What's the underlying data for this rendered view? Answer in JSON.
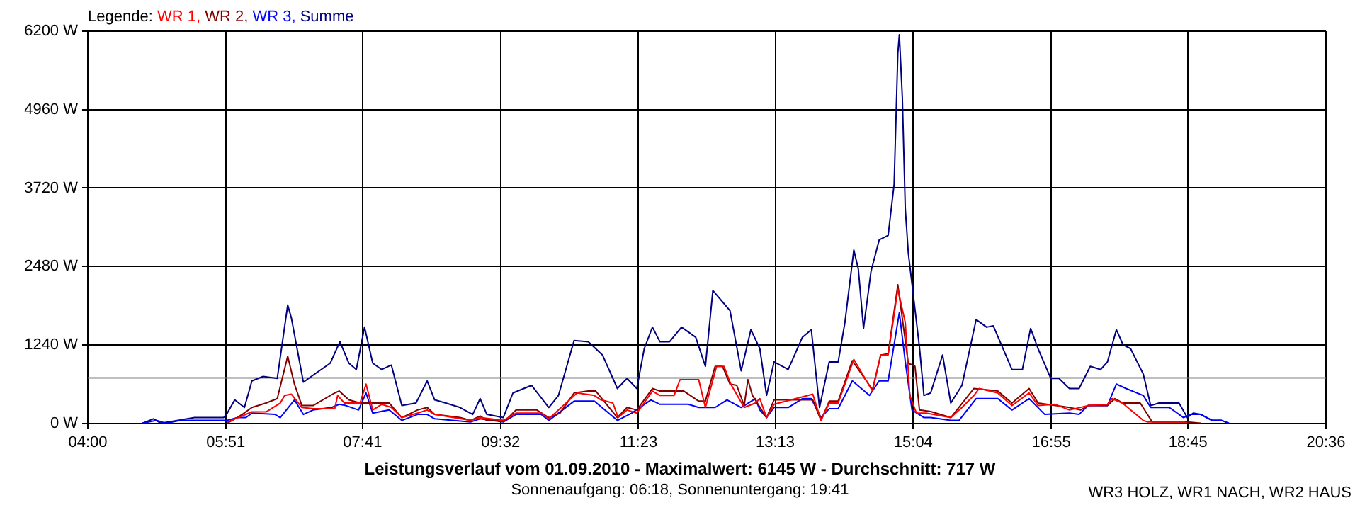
{
  "chart_data": {
    "type": "line",
    "title": "Leistungsverlauf vom 01.09.2010 - Maximalwert: 6145 W - Durchschnitt: 717 W",
    "subtitle": "Sonnenaufgang: 06:18, Sonnenuntergang: 19:41",
    "annotations": [
      "WR3 HOLZ, WR1 NACH, WR2 HAUS"
    ],
    "legend_title": "Legende:",
    "legend": "top left",
    "grid": true,
    "marker": "none",
    "xlim": [
      4,
      20.6
    ],
    "xticks": [
      {
        "value": 4,
        "label": "04:00"
      },
      {
        "value": 5.85,
        "label": "05:51"
      },
      {
        "value": 7.6833,
        "label": "07:41"
      },
      {
        "value": 9.5333,
        "label": "09:32"
      },
      {
        "value": 11.3833,
        "label": "11:23"
      },
      {
        "value": 13.2167,
        "label": "13:13"
      },
      {
        "value": 15.0667,
        "label": "15:04"
      },
      {
        "value": 16.9167,
        "label": "16:55"
      },
      {
        "value": 18.75,
        "label": "18:45"
      },
      {
        "value": 20.6,
        "label": "20:36"
      }
    ],
    "ylim": [
      0,
      6200
    ],
    "yticks": [
      {
        "value": 0,
        "label": "0 W"
      },
      {
        "value": 1240,
        "label": "1240 W"
      },
      {
        "value": 2480,
        "label": "2480 W"
      },
      {
        "value": 3720,
        "label": "3720 W"
      },
      {
        "value": 4960,
        "label": "4960 W"
      },
      {
        "value": 6200,
        "label": "6200 W"
      }
    ],
    "ref_lines": [
      {
        "axis": "y",
        "value": 717,
        "color": "#808080"
      }
    ],
    "series": [
      {
        "name": "WR 1,",
        "color": "#ff0000",
        "x": [
          5.87,
          6.2,
          6.39,
          6.58,
          6.64,
          6.73,
          6.87,
          7.02,
          7.31,
          7.35,
          7.44,
          7.65,
          7.73,
          7.82,
          7.94,
          8.07,
          8.21,
          8.42,
          8.55,
          8.65,
          9.13,
          9.26,
          9.57,
          9.74,
          10.08,
          10.18,
          10.56,
          10.79,
          10.88,
          11.04,
          11.11,
          11.23,
          11.36,
          11.57,
          11.67,
          11.86,
          11.94,
          12.19,
          12.28,
          12.43,
          12.53,
          12.62,
          12.8,
          12.95,
          13.01,
          13.1,
          13.2,
          13.72,
          13.83,
          13.94,
          14.06,
          14.27,
          14.52,
          14.63,
          14.73,
          14.86,
          14.96,
          15.02,
          15.11,
          15.24,
          15.57,
          15.72,
          15.88,
          15.95,
          16.2,
          16.39,
          16.62,
          16.74,
          16.97,
          17.16,
          17.41,
          17.67,
          17.73,
          17.87,
          18.15,
          18.21,
          18.69,
          18.74
        ],
        "values": [
          20,
          180,
          180,
          320,
          440,
          460,
          250,
          230,
          230,
          440,
          320,
          320,
          620,
          210,
          300,
          250,
          90,
          160,
          210,
          140,
          45,
          90,
          45,
          160,
          160,
          70,
          480,
          440,
          370,
          320,
          90,
          210,
          160,
          510,
          440,
          440,
          690,
          690,
          250,
          900,
          900,
          620,
          250,
          320,
          390,
          90,
          300,
          460,
          45,
          320,
          320,
          1010,
          510,
          1080,
          1080,
          2120,
          1590,
          440,
          160,
          160,
          90,
          250,
          440,
          550,
          480,
          280,
          480,
          280,
          300,
          210,
          280,
          300,
          390,
          320,
          45,
          20,
          20,
          0
        ]
      },
      {
        "name": "WR 2,",
        "color": "#800000",
        "x": [
          5.87,
          6.07,
          6.2,
          6.39,
          6.54,
          6.68,
          6.77,
          6.87,
          7.02,
          7.31,
          7.37,
          7.5,
          7.65,
          7.79,
          8.04,
          8.21,
          8.42,
          8.55,
          8.65,
          8.99,
          9.13,
          9.26,
          9.35,
          9.6,
          9.74,
          10.02,
          10.18,
          10.33,
          10.52,
          10.71,
          10.81,
          11.1,
          11.23,
          11.36,
          11.57,
          11.67,
          11.99,
          12.19,
          12.28,
          12.41,
          12.51,
          12.61,
          12.7,
          12.8,
          12.85,
          12.91,
          13.1,
          13.2,
          13.72,
          13.83,
          13.94,
          14.06,
          14.25,
          14.52,
          14.63,
          14.73,
          14.86,
          15,
          15.09,
          15.15,
          15.3,
          15.57,
          15.88,
          16.2,
          16.39,
          16.62,
          16.74,
          17.16,
          17.31,
          17.41,
          17.67,
          17.77,
          17.88,
          18.11,
          18.27,
          18.74,
          18.92
        ],
        "values": [
          0,
          140,
          250,
          320,
          390,
          1060,
          620,
          280,
          280,
          480,
          510,
          370,
          320,
          320,
          320,
          90,
          210,
          250,
          140,
          90,
          45,
          115,
          45,
          45,
          210,
          210,
          90,
          160,
          480,
          510,
          510,
          90,
          250,
          210,
          550,
          510,
          510,
          350,
          350,
          900,
          900,
          620,
          600,
          280,
          690,
          440,
          90,
          370,
          370,
          45,
          350,
          350,
          990,
          530,
          1080,
          1100,
          2190,
          950,
          900,
          210,
          185,
          90,
          550,
          510,
          320,
          550,
          320,
          250,
          210,
          280,
          280,
          390,
          320,
          320,
          20,
          20,
          0
        ]
      },
      {
        "name": "WR 3,",
        "color": "#0000ff",
        "x": [
          4.73,
          4.92,
          5.05,
          5.24,
          5.49,
          5.87,
          6.01,
          6.12,
          6.2,
          6.51,
          6.58,
          6.77,
          6.89,
          7.02,
          7.27,
          7.37,
          7.46,
          7.63,
          7.73,
          7.82,
          8.04,
          8.21,
          8.42,
          8.55,
          8.65,
          9.13,
          9.26,
          9.57,
          9.74,
          10.08,
          10.18,
          10.52,
          10.79,
          11.1,
          11.29,
          11.55,
          11.67,
          12.05,
          12.19,
          12.41,
          12.57,
          12.76,
          12.95,
          13.01,
          13.1,
          13.2,
          13.39,
          13.58,
          13.7,
          13.83,
          13.94,
          14.06,
          14.25,
          14.48,
          14.61,
          14.73,
          14.88,
          14.96,
          15.05,
          15.21,
          15.3,
          15.57,
          15.68,
          15.91,
          16.2,
          16.39,
          16.62,
          16.83,
          17.16,
          17.29,
          17.41,
          17.67,
          17.79,
          17.92,
          18.15,
          18.25,
          18.5,
          18.69,
          18.78,
          18.92,
          19.07,
          19.2,
          19.3
        ],
        "values": [
          0,
          45,
          0,
          45,
          45,
          45,
          90,
          90,
          160,
          140,
          90,
          370,
          140,
          210,
          250,
          300,
          280,
          210,
          480,
          160,
          210,
          45,
          140,
          140,
          70,
          20,
          70,
          20,
          140,
          140,
          45,
          350,
          350,
          45,
          160,
          370,
          300,
          300,
          250,
          250,
          370,
          250,
          390,
          210,
          90,
          250,
          250,
          390,
          390,
          90,
          230,
          230,
          670,
          440,
          670,
          670,
          1750,
          970,
          210,
          90,
          90,
          45,
          45,
          390,
          390,
          210,
          390,
          140,
          160,
          140,
          280,
          280,
          620,
          550,
          440,
          250,
          250,
          90,
          140,
          140,
          45,
          45,
          0
        ]
      },
      {
        "name": "Summe",
        "color": "#000080",
        "x": [
          4.73,
          4.88,
          4.98,
          5.43,
          5.82,
          5.87,
          5.97,
          6.1,
          6.2,
          6.35,
          6.54,
          6.68,
          6.73,
          6.89,
          7.02,
          7.25,
          7.38,
          7.5,
          7.6,
          7.71,
          7.82,
          7.94,
          8.07,
          8.21,
          8.4,
          8.55,
          8.65,
          8.8,
          8.99,
          9.16,
          9.26,
          9.35,
          9.57,
          9.7,
          9.95,
          10.18,
          10.31,
          10.52,
          10.71,
          10.9,
          11.1,
          11.23,
          11.36,
          11.46,
          11.57,
          11.67,
          11.8,
          11.96,
          12.15,
          12.28,
          12.38,
          12.61,
          12.76,
          12.89,
          13.01,
          13.1,
          13.2,
          13.39,
          13.58,
          13.7,
          13.81,
          13.94,
          14.06,
          14.15,
          14.27,
          14.33,
          14.4,
          14.5,
          14.61,
          14.73,
          14.81,
          14.86,
          14.88,
          14.92,
          14.96,
          15,
          15.15,
          15.21,
          15.3,
          15.46,
          15.57,
          15.72,
          15.91,
          16.05,
          16.14,
          16.39,
          16.53,
          16.64,
          16.74,
          16.91,
          17.02,
          17.16,
          17.29,
          17.44,
          17.58,
          17.67,
          17.79,
          17.88,
          17.98,
          18.15,
          18.25,
          18.36,
          18.63,
          18.74,
          18.82,
          18.92,
          19.07,
          19.2,
          19.3
        ],
        "values": [
          0,
          70,
          0,
          90,
          90,
          160,
          370,
          250,
          670,
          740,
          710,
          1870,
          1660,
          650,
          760,
          950,
          1290,
          950,
          850,
          1520,
          950,
          850,
          920,
          280,
          320,
          670,
          370,
          320,
          250,
          140,
          390,
          140,
          90,
          480,
          600,
          250,
          440,
          1310,
          1290,
          1080,
          550,
          710,
          550,
          1180,
          1520,
          1290,
          1290,
          1520,
          1360,
          900,
          2100,
          1780,
          830,
          1480,
          1180,
          440,
          970,
          850,
          1360,
          1480,
          250,
          970,
          970,
          1590,
          2740,
          2440,
          1500,
          2400,
          2900,
          2970,
          3780,
          5850,
          6145,
          5160,
          3390,
          2700,
          1200,
          440,
          480,
          1080,
          320,
          600,
          1640,
          1520,
          1540,
          850,
          850,
          1500,
          1180,
          710,
          710,
          550,
          550,
          900,
          850,
          970,
          1480,
          1240,
          1180,
          780,
          280,
          320,
          320,
          90,
          160,
          140,
          50,
          45,
          0
        ]
      }
    ]
  }
}
